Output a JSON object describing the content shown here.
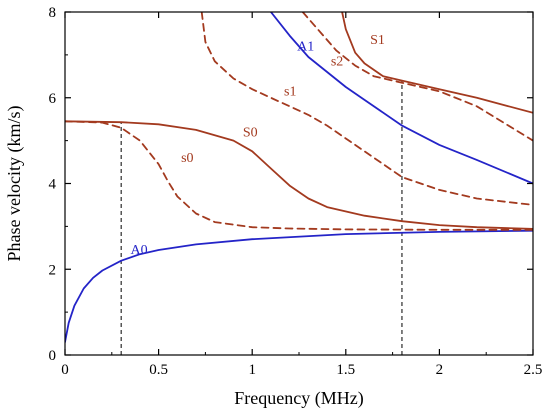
{
  "chart_data": {
    "type": "line",
    "title": "",
    "xlabel": "Frequency (MHz)",
    "ylabel": "Phase velocity (km/s)",
    "xlim": [
      0,
      2.5
    ],
    "ylim": [
      0,
      8
    ],
    "xticks": [
      0,
      0.5,
      1,
      1.5,
      2,
      2.5
    ],
    "xtick_labels": [
      "0",
      "0.5",
      "1",
      "1.5",
      "2",
      "2.5"
    ],
    "yticks": [
      0,
      2,
      4,
      6,
      8
    ],
    "ytick_labels": [
      "0",
      "2",
      "4",
      "6",
      "8"
    ],
    "grid": false,
    "legend": "none",
    "colors": {
      "blue": "#2424c8",
      "brown": "#a33a1f",
      "axis": "#000000",
      "guide": "#000000"
    },
    "series": [
      {
        "name": "A0",
        "style": "solid",
        "color": "blue",
        "label_at": {
          "x": 0.35,
          "y": 2.35
        },
        "x": [
          0.0,
          0.02,
          0.05,
          0.1,
          0.15,
          0.2,
          0.3,
          0.4,
          0.5,
          0.7,
          1.0,
          1.5,
          2.0,
          2.5
        ],
        "y": [
          0.3,
          0.75,
          1.15,
          1.55,
          1.8,
          1.97,
          2.2,
          2.35,
          2.45,
          2.58,
          2.7,
          2.82,
          2.87,
          2.9
        ]
      },
      {
        "name": "S0",
        "style": "solid",
        "color": "brown",
        "label_at": {
          "x": 0.95,
          "y": 5.1
        },
        "x": [
          0.0,
          0.3,
          0.5,
          0.7,
          0.9,
          1.0,
          1.1,
          1.2,
          1.3,
          1.4,
          1.6,
          1.8,
          2.0,
          2.2,
          2.5
        ],
        "y": [
          5.45,
          5.43,
          5.38,
          5.25,
          5.0,
          4.75,
          4.35,
          3.95,
          3.65,
          3.45,
          3.25,
          3.12,
          3.03,
          2.98,
          2.94
        ]
      },
      {
        "name": "s0",
        "style": "dashed",
        "color": "brown",
        "label_at": {
          "x": 0.62,
          "y": 4.5
        },
        "x": [
          0.0,
          0.2,
          0.3,
          0.4,
          0.5,
          0.55,
          0.6,
          0.7,
          0.8,
          1.0,
          1.2,
          1.5,
          2.0,
          2.5
        ],
        "y": [
          5.45,
          5.42,
          5.3,
          5.0,
          4.45,
          4.05,
          3.7,
          3.3,
          3.1,
          2.98,
          2.95,
          2.93,
          2.92,
          2.92
        ]
      },
      {
        "name": "s1",
        "style": "dashed",
        "color": "brown",
        "label_at": {
          "x": 1.17,
          "y": 6.05
        },
        "x": [
          0.73,
          0.75,
          0.8,
          0.9,
          1.0,
          1.1,
          1.2,
          1.3,
          1.4,
          1.5,
          1.6,
          1.8,
          2.0,
          2.2,
          2.5
        ],
        "y": [
          8.0,
          7.3,
          6.85,
          6.45,
          6.2,
          6.0,
          5.8,
          5.6,
          5.35,
          5.05,
          4.75,
          4.15,
          3.85,
          3.65,
          3.5
        ]
      },
      {
        "name": "A1",
        "style": "solid",
        "color": "blue",
        "label_at": {
          "x": 1.24,
          "y": 7.1
        },
        "x": [
          1.1,
          1.2,
          1.3,
          1.4,
          1.5,
          1.6,
          1.8,
          2.0,
          2.2,
          2.5
        ],
        "y": [
          8.0,
          7.45,
          6.95,
          6.6,
          6.25,
          5.95,
          5.35,
          4.9,
          4.55,
          4.0
        ]
      },
      {
        "name": "s2",
        "style": "dashed",
        "color": "brown",
        "label_at": {
          "x": 1.42,
          "y": 6.75
        },
        "x": [
          1.27,
          1.35,
          1.45,
          1.55,
          1.65,
          1.8,
          2.0,
          2.2,
          2.5
        ],
        "y": [
          8.0,
          7.6,
          7.1,
          6.75,
          6.5,
          6.35,
          6.15,
          5.8,
          5.0
        ]
      },
      {
        "name": "S1",
        "style": "solid",
        "color": "brown",
        "label_at": {
          "x": 1.63,
          "y": 7.25
        },
        "x": [
          1.48,
          1.5,
          1.55,
          1.6,
          1.7,
          1.8,
          2.0,
          2.2,
          2.5
        ],
        "y": [
          8.0,
          7.6,
          7.05,
          6.8,
          6.5,
          6.4,
          6.2,
          6.0,
          5.65
        ]
      }
    ],
    "guide_lines": [
      {
        "x": 0.3,
        "y_from": 0,
        "y_to": 5.43
      },
      {
        "x": 1.8,
        "y_from": 0,
        "y_to": 6.4
      }
    ]
  }
}
